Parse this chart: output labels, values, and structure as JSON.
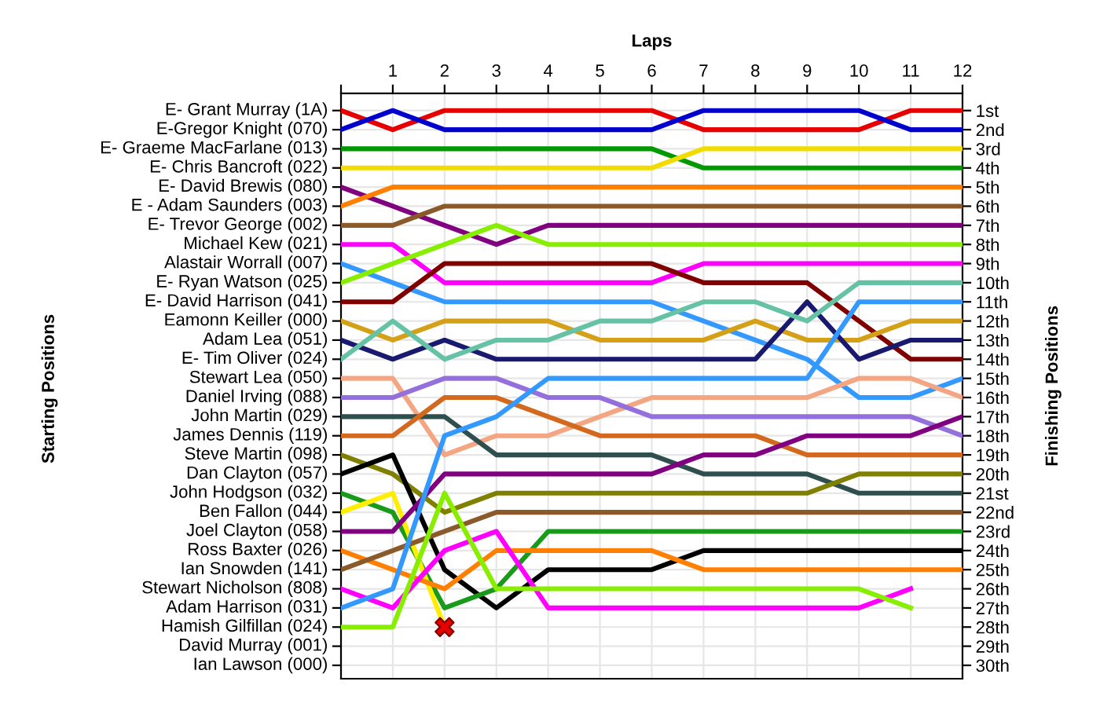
{
  "chart_data": {
    "type": "line",
    "xlabel": "Laps",
    "ylabel": "Finishing Positions",
    "annotations": [
      "Starting Positions",
      "E- Grant Murray (1A)",
      "E-Gregor Knight (070)",
      "E- Graeme MacFarlane (013)",
      "E- Chris Bancroft (022)",
      "E- David Brewis (080)",
      "E - Adam Saunders (003)",
      "E- Trevor George (002)",
      "Michael Kew (021)",
      "Alastair Worrall (007)",
      "E- Ryan Watson (025)",
      "E- David Harrison (041)",
      "Eamonn Keiller (000)",
      "Adam Lea (051)",
      "E- Tim Oliver (024)",
      "Stewart Lea (050)",
      "Daniel Irving (088)",
      "John Martin (029)",
      "James Dennis (119)",
      "Steve Martin (098)",
      "Dan Clayton (057)",
      "John Hodgson (032)",
      "Ben Fallon (044)",
      "Joel Clayton (058)",
      "Ross Baxter (026)",
      "Ian Snowden (141)",
      "Stewart Nicholson (808)",
      "Adam Harrison (031)",
      "Hamish Gilfillan (024)",
      "David Murray (001)",
      "Ian Lawson (000)"
    ],
    "x": [
      0,
      1,
      2,
      3,
      4,
      5,
      6,
      7,
      8,
      9,
      10,
      11,
      12
    ],
    "xlim": [
      0,
      12
    ],
    "xticks": [
      {
        "value": 0,
        "label": null
      },
      1,
      2,
      3,
      4,
      5,
      6,
      7,
      8,
      9,
      10,
      11,
      12
    ],
    "ylim": [
      30.7,
      0.1
    ],
    "yticks": [
      {
        "value": 1,
        "label": "1st"
      },
      {
        "value": 2,
        "label": "2nd"
      },
      {
        "value": 3,
        "label": "3rd"
      },
      {
        "value": 4,
        "label": "4th"
      },
      {
        "value": 5,
        "label": "5th"
      },
      {
        "value": 6,
        "label": "6th"
      },
      {
        "value": 7,
        "label": "7th"
      },
      {
        "value": 8,
        "label": "8th"
      },
      {
        "value": 9,
        "label": "9th"
      },
      {
        "value": 10,
        "label": "10th"
      },
      {
        "value": 11,
        "label": "11th"
      },
      {
        "value": 12,
        "label": "12th"
      },
      {
        "value": 13,
        "label": "13th"
      },
      {
        "value": 14,
        "label": "14th"
      },
      {
        "value": 15,
        "label": "15th"
      },
      {
        "value": 16,
        "label": "16th"
      },
      {
        "value": 17,
        "label": "17th"
      },
      {
        "value": 18,
        "label": "18th"
      },
      {
        "value": 19,
        "label": "19th"
      },
      {
        "value": 20,
        "label": "20th"
      },
      {
        "value": 21,
        "label": "21st"
      },
      {
        "value": 22,
        "label": "22nd"
      },
      {
        "value": 23,
        "label": "23rd"
      },
      {
        "value": 24,
        "label": "24th"
      },
      {
        "value": 25,
        "label": "25th"
      },
      {
        "value": 26,
        "label": "26th"
      },
      {
        "value": 27,
        "label": "27th"
      },
      {
        "value": 28,
        "label": "28th"
      },
      {
        "value": 29,
        "label": "29th"
      },
      {
        "value": 30,
        "label": "30th"
      }
    ],
    "grid": true,
    "legend": false,
    "marker": "none",
    "line_style": "solid",
    "series": [
      {
        "color": "#e60000",
        "values": [
          1,
          2,
          1,
          1,
          1,
          1,
          1,
          2,
          2,
          2,
          2,
          1,
          1
        ]
      },
      {
        "color": "#0000cc",
        "values": [
          2,
          1,
          2,
          2,
          2,
          2,
          2,
          1,
          1,
          1,
          1,
          2,
          2
        ]
      },
      {
        "color": "#009900",
        "values": [
          3,
          3,
          3,
          3,
          3,
          3,
          3,
          4,
          4,
          4,
          4,
          4,
          4
        ]
      },
      {
        "color": "#f2dc00",
        "values": [
          4,
          4,
          4,
          4,
          4,
          4,
          4,
          3,
          3,
          3,
          3,
          3,
          3
        ]
      },
      {
        "color": "#800080",
        "values": [
          5,
          6,
          7,
          8,
          7,
          7,
          7,
          7,
          7,
          7,
          7,
          7,
          7
        ]
      },
      {
        "color": "#ff8000",
        "values": [
          6,
          5,
          5,
          5,
          5,
          5,
          5,
          5,
          5,
          5,
          5,
          5,
          5
        ]
      },
      {
        "color": "#8b5a2b",
        "values": [
          7,
          7,
          6,
          6,
          6,
          6,
          6,
          6,
          6,
          6,
          6,
          6,
          6
        ]
      },
      {
        "color": "#ff00ff",
        "values": [
          8,
          8,
          10,
          10,
          10,
          10,
          10,
          9,
          9,
          9,
          9,
          9,
          9
        ]
      },
      {
        "color": "#3399ff",
        "values": [
          9,
          10,
          11,
          11,
          11,
          11,
          11,
          12,
          13,
          14,
          16,
          16,
          15
        ]
      },
      {
        "color": "#88ee00",
        "values": [
          10,
          9,
          8,
          7,
          8,
          8,
          8,
          8,
          8,
          8,
          8,
          8,
          8
        ]
      },
      {
        "color": "#800000",
        "values": [
          11,
          11,
          9,
          9,
          9,
          9,
          9,
          10,
          10,
          10,
          12,
          14,
          14
        ]
      },
      {
        "color": "#d4a017",
        "values": [
          12,
          13,
          12,
          12,
          12,
          13,
          13,
          13,
          12,
          13,
          13,
          12,
          12
        ]
      },
      {
        "color": "#191970",
        "values": [
          13,
          14,
          13,
          14,
          14,
          14,
          14,
          14,
          14,
          11,
          14,
          13,
          13
        ]
      },
      {
        "color": "#66c2a5",
        "values": [
          14,
          12,
          14,
          13,
          13,
          12,
          12,
          11,
          11,
          12,
          10,
          10,
          10
        ]
      },
      {
        "color": "#f4a582",
        "values": [
          15,
          15,
          19,
          18,
          18,
          17,
          16,
          16,
          16,
          16,
          15,
          15,
          16
        ]
      },
      {
        "color": "#9370db",
        "values": [
          16,
          16,
          15,
          15,
          16,
          16,
          17,
          17,
          17,
          17,
          17,
          17,
          18
        ]
      },
      {
        "color": "#2f4f4f",
        "values": [
          17,
          17,
          17,
          19,
          19,
          19,
          19,
          20,
          20,
          20,
          21,
          21,
          21
        ]
      },
      {
        "color": "#d2691e",
        "values": [
          18,
          18,
          16,
          16,
          17,
          18,
          18,
          18,
          18,
          19,
          19,
          19,
          19
        ]
      },
      {
        "color": "#808000",
        "values": [
          19,
          20,
          22,
          21,
          21,
          21,
          21,
          21,
          21,
          21,
          20,
          20,
          20
        ]
      },
      {
        "color": "#000000",
        "values": [
          20,
          19,
          25,
          27,
          25,
          25,
          25,
          24,
          24,
          24,
          24,
          24,
          24
        ]
      },
      {
        "color": "#1a9a1a",
        "values": [
          21,
          22,
          27,
          26,
          23,
          23,
          23,
          23,
          23,
          23,
          23,
          23,
          23
        ]
      },
      {
        "color": "#ffee00",
        "values": [
          22,
          21,
          28,
          null,
          null,
          null,
          null,
          null,
          null,
          null,
          null,
          null,
          null
        ]
      },
      {
        "color": "#800080",
        "values": [
          23,
          23,
          20,
          20,
          20,
          20,
          20,
          19,
          19,
          18,
          18,
          18,
          17
        ]
      },
      {
        "color": "#ff8000",
        "values": [
          24,
          25,
          26,
          24,
          24,
          24,
          24,
          25,
          25,
          25,
          25,
          25,
          25
        ]
      },
      {
        "color": "#8b5a2b",
        "values": [
          25,
          24,
          23,
          22,
          22,
          22,
          22,
          22,
          22,
          22,
          22,
          22,
          22
        ]
      },
      {
        "color": "#ff00ff",
        "values": [
          26,
          27,
          24,
          23,
          27,
          27,
          27,
          27,
          27,
          27,
          27,
          26,
          null
        ]
      },
      {
        "color": "#3399ff",
        "values": [
          27,
          26,
          18,
          17,
          15,
          15,
          15,
          15,
          15,
          15,
          11,
          11,
          11
        ]
      },
      {
        "color": "#88ee00",
        "values": [
          28,
          28,
          21,
          26,
          26,
          26,
          26,
          26,
          26,
          26,
          26,
          27,
          null
        ]
      },
      {
        "type": "scatter",
        "marker": "cross",
        "color": "#e60000",
        "x": [
          2
        ],
        "values": [
          28
        ]
      }
    ]
  }
}
